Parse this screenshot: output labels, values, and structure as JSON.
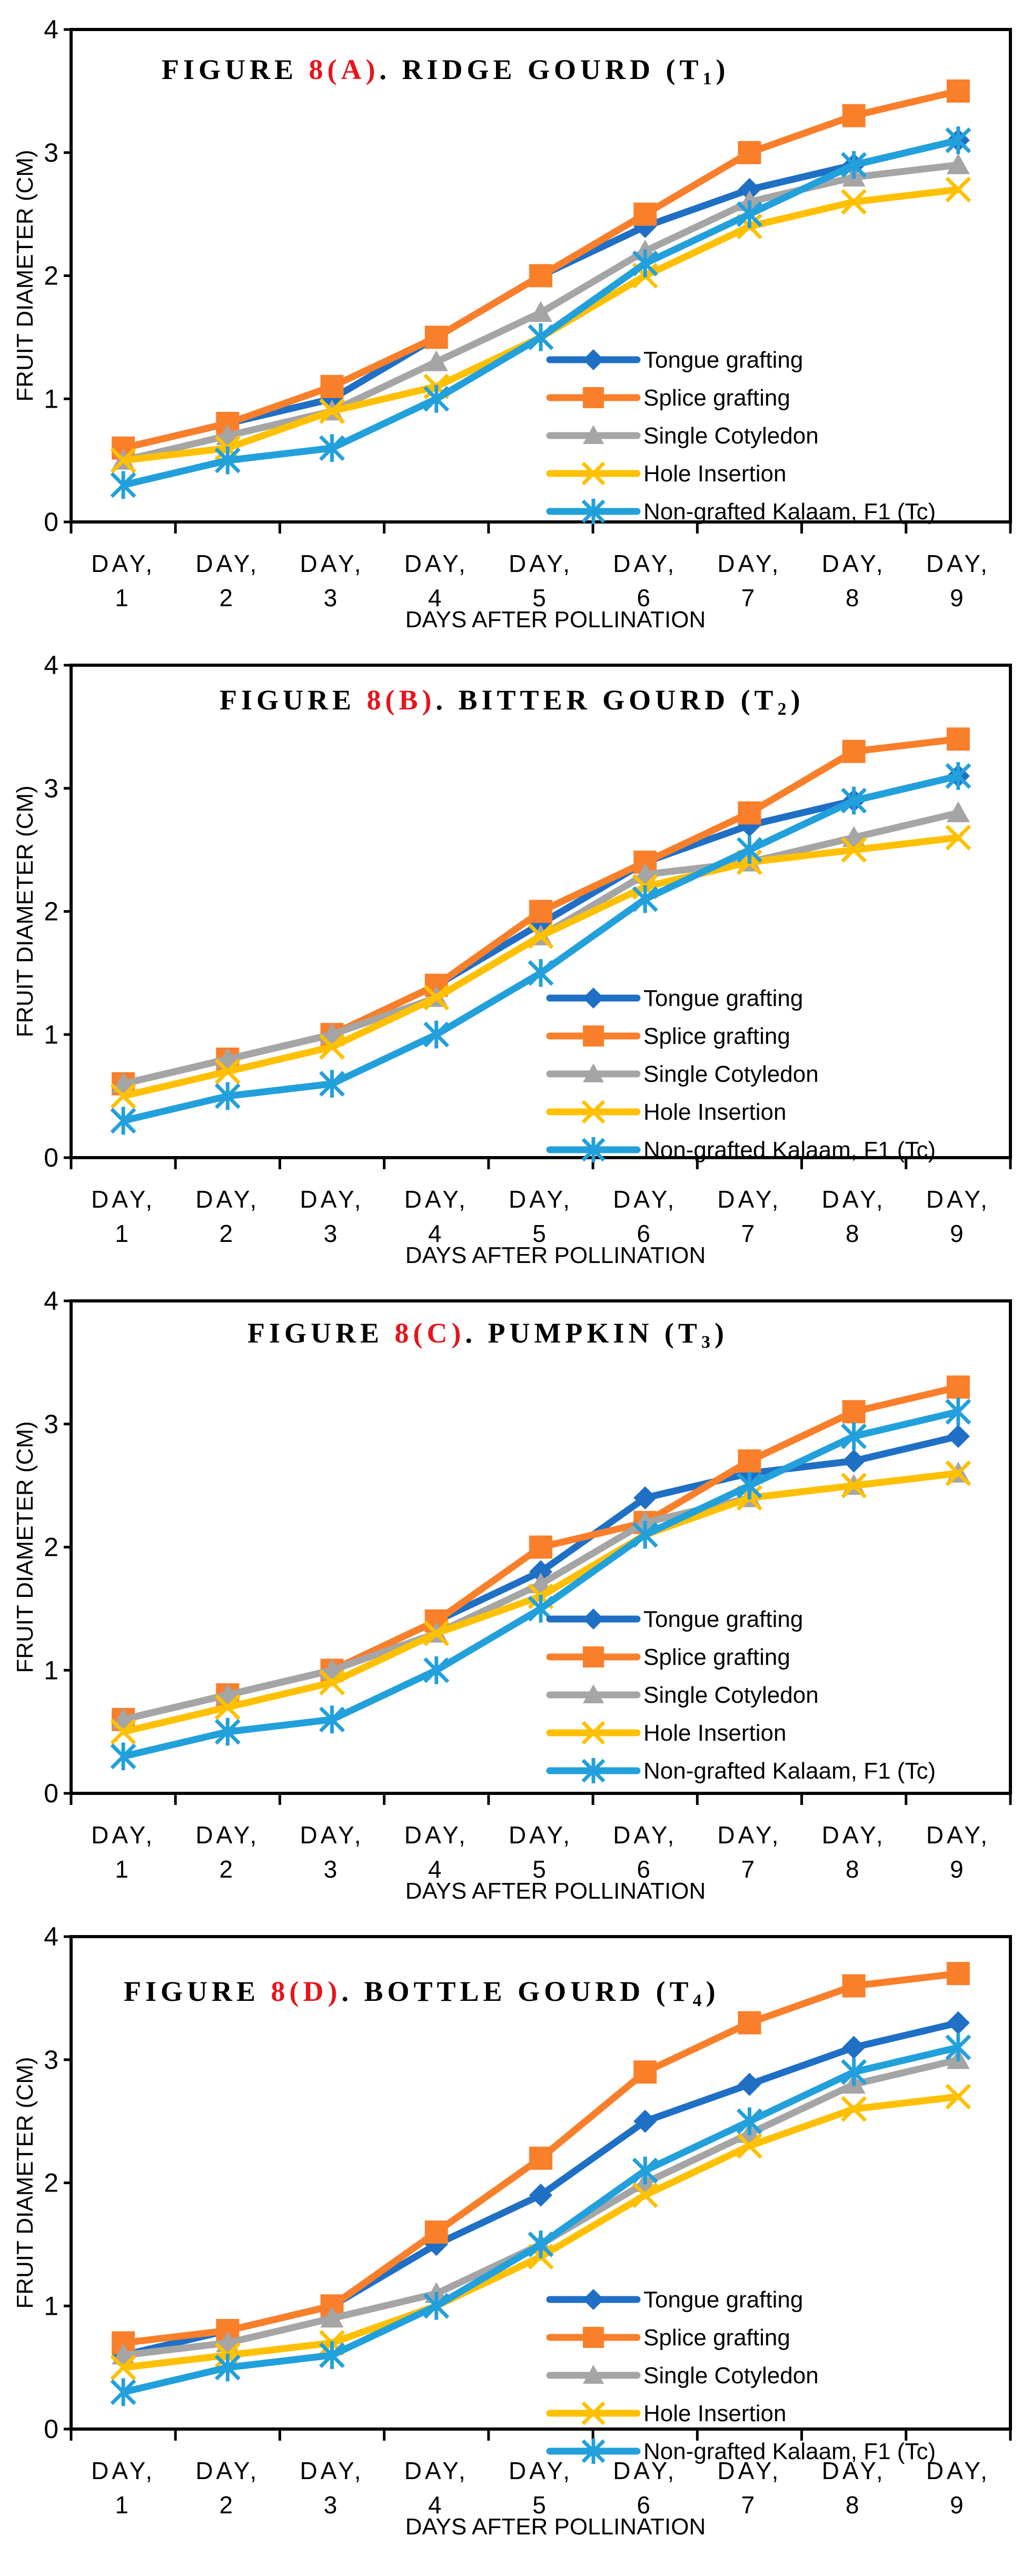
{
  "colors": {
    "tongue": "#1F6FC5",
    "splice": "#F97F2A",
    "single": "#A5A5A5",
    "hole": "#FFC000",
    "non": "#22A0DB",
    "title_accent": "#E8141B"
  },
  "series_meta": [
    {
      "key": "tongue",
      "name": "Tongue grafting",
      "marker": "diamond"
    },
    {
      "key": "splice",
      "name": "Splice grafting",
      "marker": "square"
    },
    {
      "key": "single",
      "name": "Single Cotyledon",
      "marker": "triangle"
    },
    {
      "key": "hole",
      "name": "Hole Insertion",
      "marker": "x"
    },
    {
      "key": "non",
      "name": "Non-grafted Kalaam, F1 (Tc)",
      "marker": "asterisk"
    }
  ],
  "chart_data": [
    {
      "type": "line",
      "title": {
        "prefix": "FIGURE ",
        "accent": "8(A)",
        "suffix": ". RIDGE GOURD (T",
        "sub": "1",
        "end": ")"
      },
      "categories": [
        "DAY, 1",
        "DAY, 2",
        "DAY, 3",
        "DAY, 4",
        "DAY, 5",
        "DAY, 6",
        "DAY, 7",
        "DAY, 8",
        "DAY, 9"
      ],
      "xlabel": "DAYS AFTER POLLINATION",
      "ylabel": "FRUIT DIAMETER (CM)",
      "ylim": [
        0,
        4
      ],
      "yticks": [
        "0",
        "1",
        "2",
        "3",
        "4"
      ],
      "legend": "bottom-right",
      "series": [
        {
          "name": "Tongue grafting",
          "values": [
            0.6,
            0.8,
            1.0,
            1.5,
            2.0,
            2.4,
            2.7,
            2.9,
            3.1
          ]
        },
        {
          "name": "Splice grafting",
          "values": [
            0.6,
            0.8,
            1.1,
            1.5,
            2.0,
            2.5,
            3.0,
            3.3,
            3.5
          ]
        },
        {
          "name": "Single Cotyledon",
          "values": [
            0.5,
            0.7,
            0.9,
            1.3,
            1.7,
            2.2,
            2.6,
            2.8,
            2.9
          ]
        },
        {
          "name": "Hole Insertion",
          "values": [
            0.5,
            0.6,
            0.9,
            1.1,
            1.5,
            2.0,
            2.4,
            2.6,
            2.7
          ]
        },
        {
          "name": "Non-grafted Kalaam, F1 (Tc)",
          "values": [
            0.3,
            0.5,
            0.6,
            1.0,
            1.5,
            2.1,
            2.5,
            2.9,
            3.1
          ]
        }
      ]
    },
    {
      "type": "line",
      "title": {
        "prefix": "FIGURE ",
        "accent": "8(B)",
        "suffix": ". BITTER GOURD (T",
        "sub": "2",
        "end": ")"
      },
      "categories": [
        "DAY, 1",
        "DAY, 2",
        "DAY, 3",
        "DAY, 4",
        "DAY, 5",
        "DAY, 6",
        "DAY, 7",
        "DAY, 8",
        "DAY, 9"
      ],
      "xlabel": "DAYS AFTER POLLINATION",
      "ylabel": "FRUIT DIAMETER (CM)",
      "ylim": [
        0,
        4
      ],
      "yticks": [
        "0",
        "1",
        "2",
        "3",
        "4"
      ],
      "legend": "bottom-right",
      "series": [
        {
          "name": "Tongue grafting",
          "values": [
            0.6,
            0.8,
            1.0,
            1.4,
            1.9,
            2.4,
            2.7,
            2.9,
            3.1
          ]
        },
        {
          "name": "Splice grafting",
          "values": [
            0.6,
            0.8,
            1.0,
            1.4,
            2.0,
            2.4,
            2.8,
            3.3,
            3.4
          ]
        },
        {
          "name": "Single Cotyledon",
          "values": [
            0.6,
            0.8,
            1.0,
            1.3,
            1.8,
            2.3,
            2.4,
            2.6,
            2.8
          ]
        },
        {
          "name": "Hole Insertion",
          "values": [
            0.5,
            0.7,
            0.9,
            1.3,
            1.8,
            2.2,
            2.4,
            2.5,
            2.6
          ]
        },
        {
          "name": "Non-grafted Kalaam, F1 (Tc)",
          "values": [
            0.3,
            0.5,
            0.6,
            1.0,
            1.5,
            2.1,
            2.5,
            2.9,
            3.1
          ]
        }
      ]
    },
    {
      "type": "line",
      "title": {
        "prefix": "FIGURE ",
        "accent": "8(C)",
        "suffix": ". PUMPKIN (T",
        "sub": "3",
        "end": ")"
      },
      "categories": [
        "DAY, 1",
        "DAY, 2",
        "DAY, 3",
        "DAY, 4",
        "DAY, 5",
        "DAY, 6",
        "DAY, 7",
        "DAY, 8",
        "DAY, 9"
      ],
      "xlabel": "DAYS AFTER POLLINATION",
      "ylabel": "FRUIT DIAMETER (CM)",
      "ylim": [
        0,
        4
      ],
      "yticks": [
        "0",
        "1",
        "2",
        "3",
        "4"
      ],
      "legend": "bottom-right",
      "series": [
        {
          "name": "Tongue grafting",
          "values": [
            0.6,
            0.8,
            1.0,
            1.4,
            1.8,
            2.4,
            2.6,
            2.7,
            2.9
          ]
        },
        {
          "name": "Splice grafting",
          "values": [
            0.6,
            0.8,
            1.0,
            1.4,
            2.0,
            2.2,
            2.7,
            3.1,
            3.3
          ]
        },
        {
          "name": "Single Cotyledon",
          "values": [
            0.6,
            0.8,
            1.0,
            1.3,
            1.7,
            2.2,
            2.4,
            2.5,
            2.6
          ]
        },
        {
          "name": "Hole Insertion",
          "values": [
            0.5,
            0.7,
            0.9,
            1.3,
            1.6,
            2.1,
            2.4,
            2.5,
            2.6
          ]
        },
        {
          "name": "Non-grafted Kalaam, F1 (Tc)",
          "values": [
            0.3,
            0.5,
            0.6,
            1.0,
            1.5,
            2.1,
            2.5,
            2.9,
            3.1
          ]
        }
      ]
    },
    {
      "type": "line",
      "title": {
        "prefix": "FIGURE ",
        "accent": "8(D)",
        "suffix": ". BOTTLE GOURD (T",
        "sub": "4",
        "end": ")"
      },
      "categories": [
        "DAY, 1",
        "DAY, 2",
        "DAY, 3",
        "DAY, 4",
        "DAY, 5",
        "DAY, 6",
        "DAY, 7",
        "DAY, 8",
        "DAY, 9"
      ],
      "xlabel": "DAYS AFTER POLLINATION",
      "ylabel": "FRUIT DIAMETER (CM)",
      "ylim": [
        0,
        4
      ],
      "yticks": [
        "0",
        "1",
        "2",
        "3",
        "4"
      ],
      "legend": "bottom-right",
      "series": [
        {
          "name": "Tongue grafting",
          "values": [
            0.6,
            0.8,
            1.0,
            1.5,
            1.9,
            2.5,
            2.8,
            3.1,
            3.3
          ]
        },
        {
          "name": "Splice grafting",
          "values": [
            0.7,
            0.8,
            1.0,
            1.6,
            2.2,
            2.9,
            3.3,
            3.6,
            3.7
          ]
        },
        {
          "name": "Single Cotyledon",
          "values": [
            0.6,
            0.7,
            0.9,
            1.1,
            1.5,
            2.0,
            2.4,
            2.8,
            3.0
          ]
        },
        {
          "name": "Hole Insertion",
          "values": [
            0.5,
            0.6,
            0.7,
            1.0,
            1.4,
            1.9,
            2.3,
            2.6,
            2.7
          ]
        },
        {
          "name": "Non-grafted Kalaam, F1 (Tc)",
          "values": [
            0.3,
            0.5,
            0.6,
            1.0,
            1.5,
            2.1,
            2.5,
            2.9,
            3.1
          ]
        }
      ]
    }
  ]
}
